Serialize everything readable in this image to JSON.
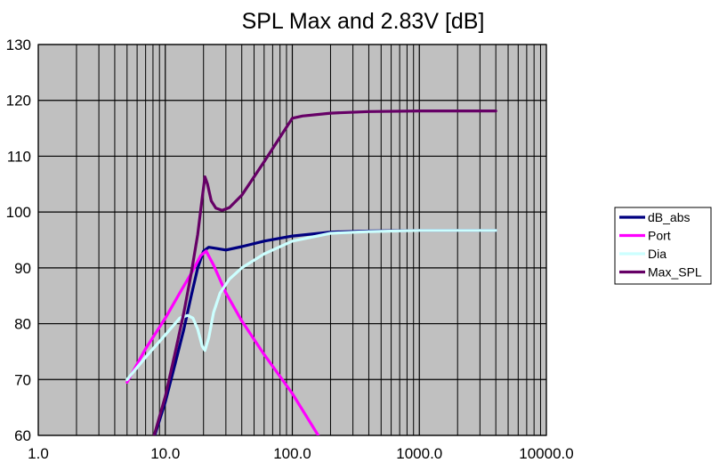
{
  "chart_data": {
    "type": "line",
    "title": "SPL Max and 2.83V [dB]",
    "xlabel": "",
    "ylabel": "",
    "xscale": "log",
    "xlim": [
      1.0,
      10000.0
    ],
    "ylim": [
      60,
      130
    ],
    "xticks": [
      "1.0",
      "10.0",
      "100.0",
      "1000.0",
      "10000.0"
    ],
    "yticks": [
      "60",
      "70",
      "80",
      "90",
      "100",
      "110",
      "120",
      "130"
    ],
    "grid": true,
    "plot_background": "#c0c0c0",
    "legend_position": "right",
    "series": [
      {
        "name": "dB_abs",
        "color": "#000080",
        "x": [
          7.5,
          10,
          12,
          14,
          16,
          18,
          20,
          22,
          25,
          30,
          40,
          60,
          100,
          200,
          400,
          1000,
          4000
        ],
        "y": [
          57,
          66,
          73,
          79,
          85,
          90,
          93,
          93.7,
          93.5,
          93.2,
          93.8,
          94.8,
          95.7,
          96.4,
          96.6,
          96.7,
          96.7
        ]
      },
      {
        "name": "Port",
        "color": "#ff00ff",
        "x": [
          5,
          7,
          10,
          13,
          16,
          19,
          21,
          24,
          30,
          40,
          60,
          100,
          160
        ],
        "y": [
          69.5,
          75.5,
          81,
          85.5,
          89,
          92.2,
          93,
          90.5,
          85.5,
          80.5,
          74.5,
          67.5,
          60
        ]
      },
      {
        "name": "Dia",
        "color": "#ccffff",
        "x": [
          5,
          7,
          10,
          13,
          15,
          16.5,
          18,
          19.5,
          20.5,
          22,
          24,
          27,
          32,
          40,
          60,
          100,
          200,
          400,
          1000,
          4000
        ],
        "y": [
          70,
          74,
          78,
          81,
          81.5,
          81,
          79,
          76,
          75.2,
          77.5,
          82,
          85.5,
          88,
          90,
          92.5,
          94.8,
          96.2,
          96.5,
          96.7,
          96.7
        ]
      },
      {
        "name": "Max_SPL",
        "color": "#660066",
        "x": [
          7.5,
          10,
          12,
          14,
          16,
          18,
          19.5,
          20.5,
          21.5,
          23,
          25,
          28,
          32,
          40,
          60,
          100,
          120,
          200,
          400,
          1000,
          4000
        ],
        "y": [
          57,
          67,
          75,
          82,
          89,
          96,
          102.5,
          106.3,
          105,
          102,
          100.7,
          100.3,
          100.8,
          103,
          109,
          116.8,
          117.2,
          117.7,
          118,
          118.1,
          118.1
        ]
      }
    ]
  }
}
